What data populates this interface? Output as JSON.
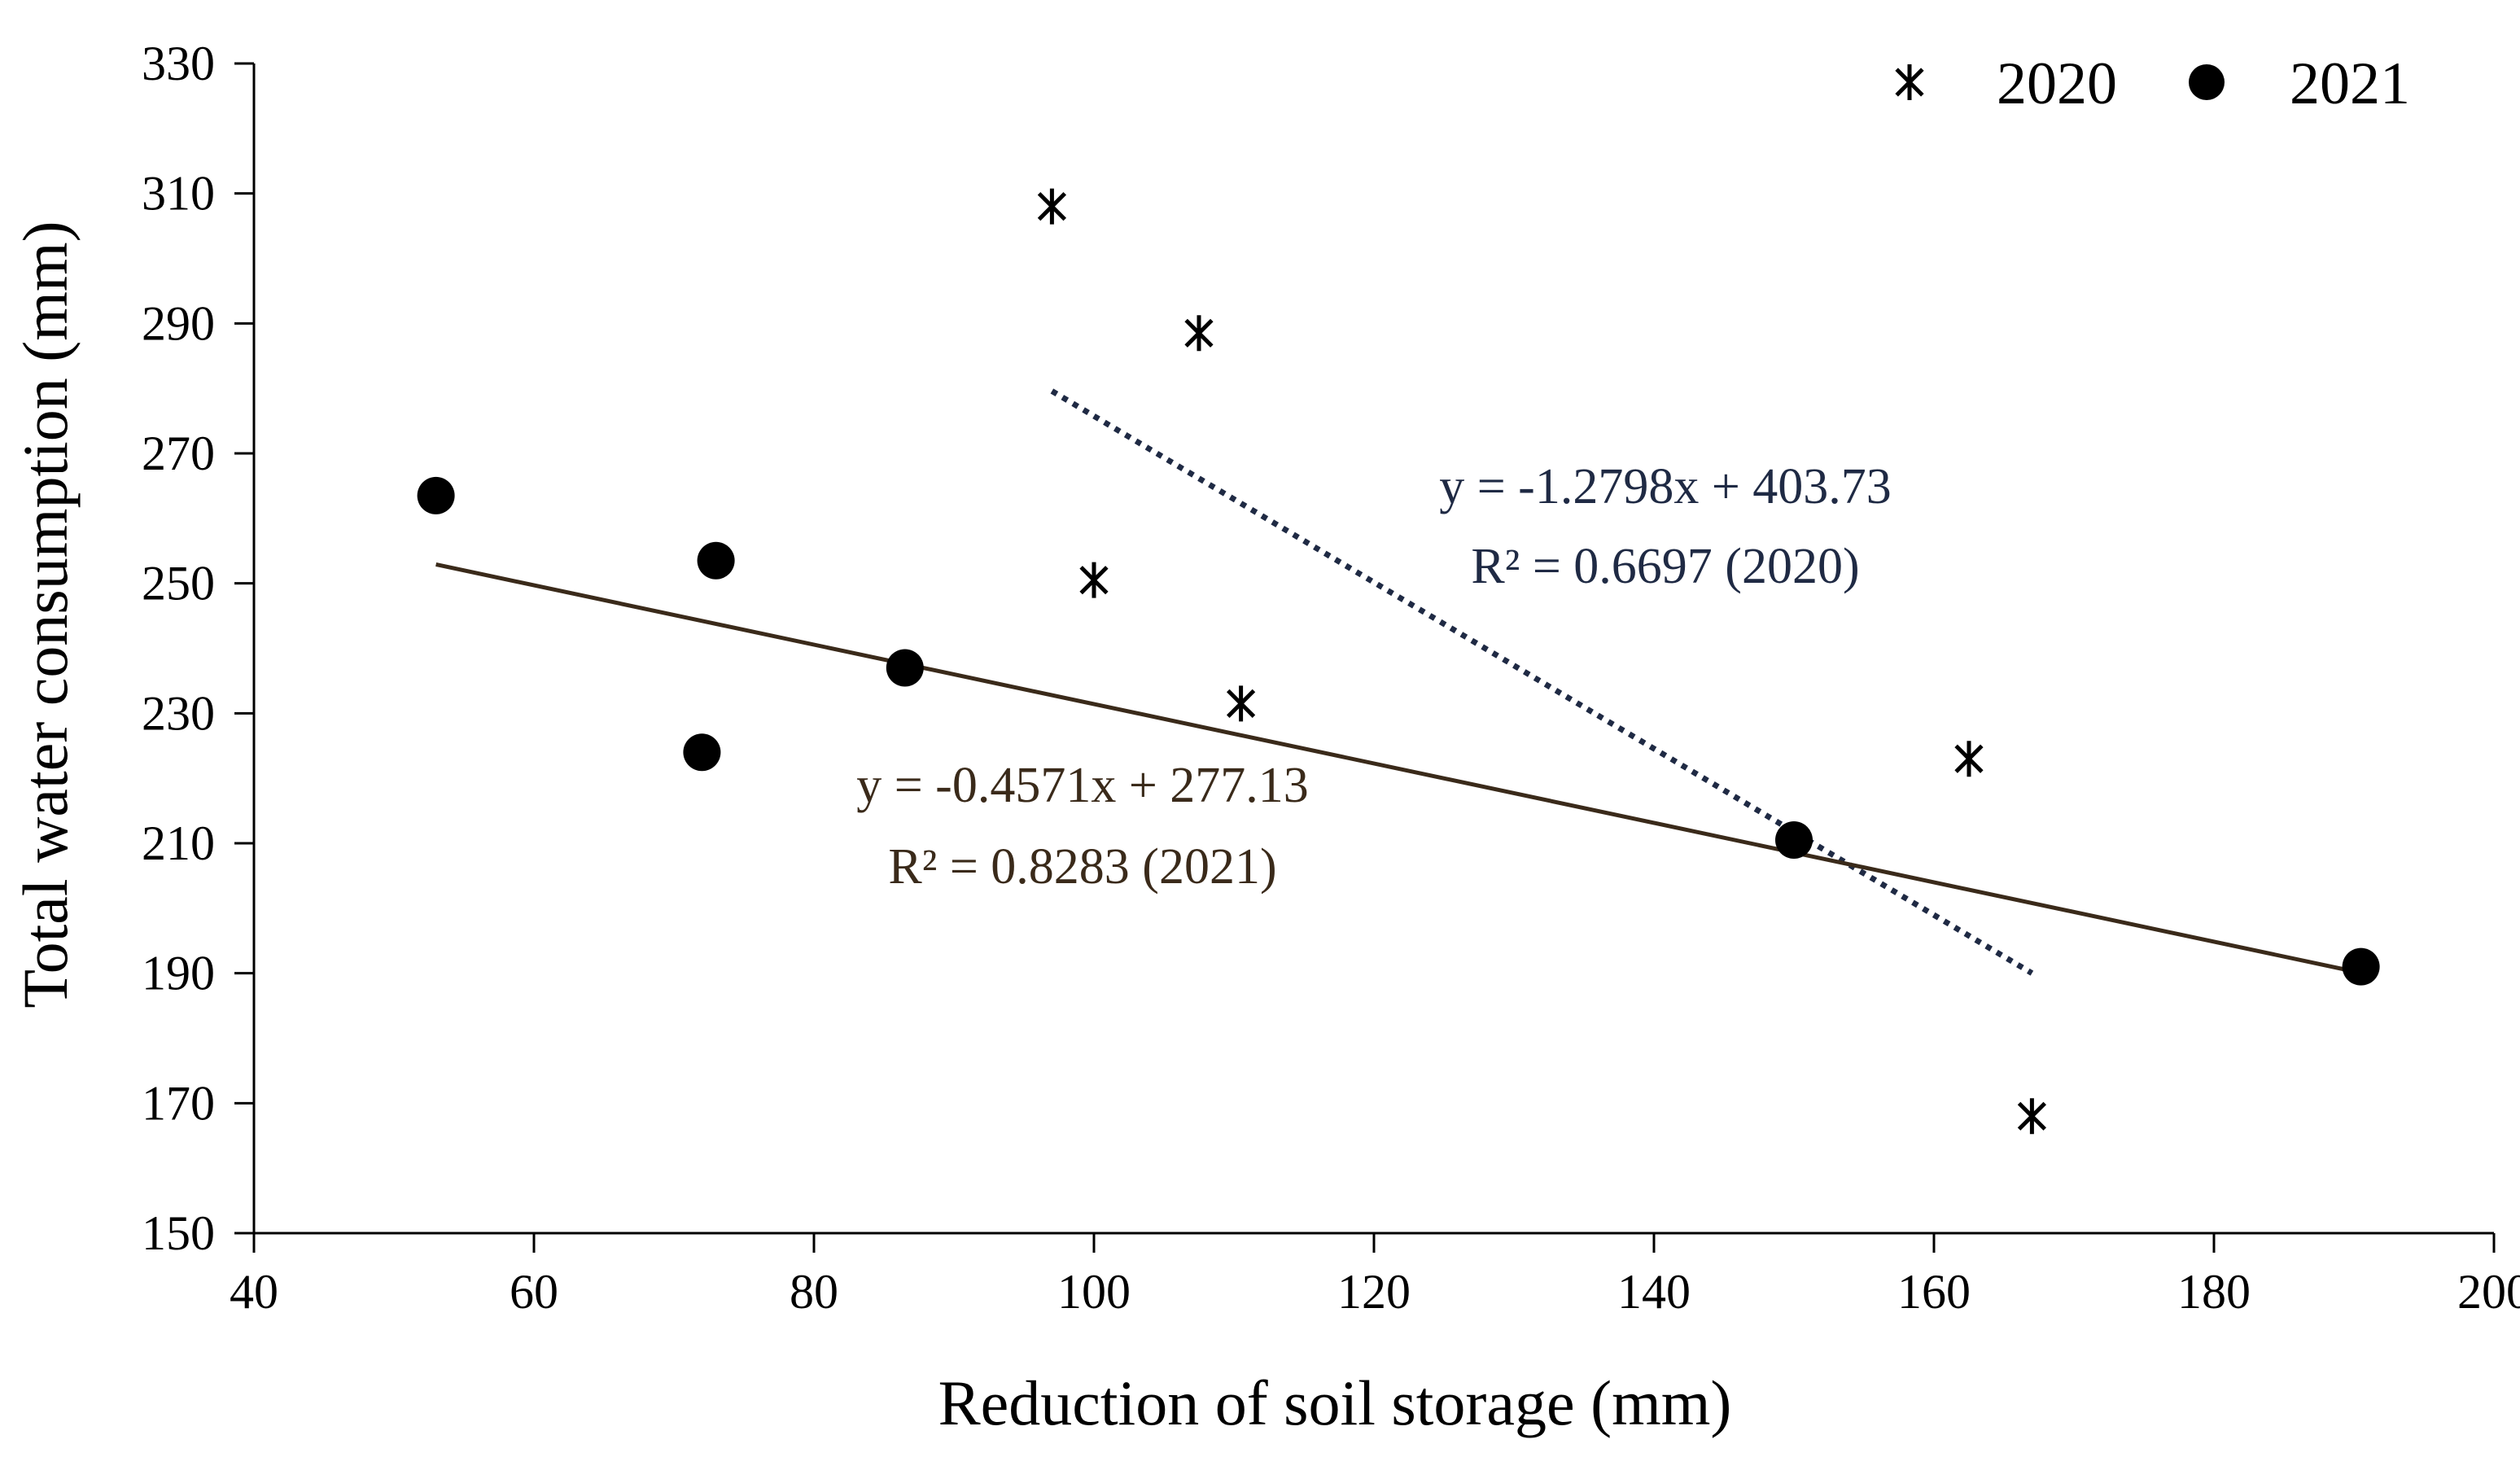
{
  "chart_data": {
    "type": "scatter",
    "xlabel": "Reduction of soil storage (mm)",
    "ylabel": "Total water consumption (mm)",
    "xlim": [
      40,
      200
    ],
    "ylim": [
      150,
      330
    ],
    "x_ticks": [
      "40",
      "60",
      "80",
      "100",
      "120",
      "140",
      "160",
      "180",
      "200"
    ],
    "y_ticks": [
      "150",
      "170",
      "190",
      "210",
      "230",
      "250",
      "270",
      "290",
      "310",
      "330"
    ],
    "grid": false,
    "legend_position": "top-right",
    "series": [
      {
        "name": "2020",
        "marker": "asterisk",
        "color": "#000000",
        "points": [
          {
            "x": 97,
            "y": 308
          },
          {
            "x": 107.5,
            "y": 288.5
          },
          {
            "x": 100,
            "y": 250.5
          },
          {
            "x": 110.5,
            "y": 231.5
          },
          {
            "x": 162.5,
            "y": 223
          },
          {
            "x": 167,
            "y": 168
          }
        ],
        "trendline": {
          "slope": -1.2798,
          "intercept": 403.73,
          "x_range": [
            97,
            167
          ],
          "style": "dotted",
          "color": "#1f2a44",
          "equation": "y = -1.2798x + 403.73",
          "r2_label": "R² = 0.6697 (2020)"
        }
      },
      {
        "name": "2021",
        "marker": "circle",
        "color": "#000000",
        "points": [
          {
            "x": 53,
            "y": 263.5
          },
          {
            "x": 73,
            "y": 253.5
          },
          {
            "x": 86.5,
            "y": 237
          },
          {
            "x": 72,
            "y": 224
          },
          {
            "x": 150,
            "y": 210.5
          },
          {
            "x": 190.5,
            "y": 191
          }
        ],
        "trendline": {
          "slope": -0.4571,
          "intercept": 277.13,
          "x_range": [
            53,
            190.5
          ],
          "style": "solid",
          "color": "#3a2a1a",
          "equation": "y = -0.4571x + 277.13",
          "r2_label": "R² = 0.8283 (2021)"
        }
      }
    ]
  }
}
